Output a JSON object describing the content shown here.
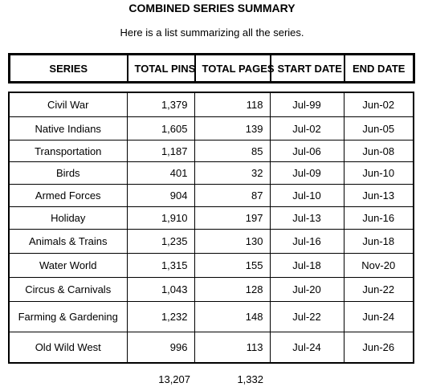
{
  "header": {
    "title": "COMBINED SERIES SUMMARY",
    "subtitle": "Here is a list summarizing all the series."
  },
  "table": {
    "columns": [
      "SERIES",
      "TOTAL PINS",
      "TOTAL PAGES",
      "START DATE",
      "END DATE"
    ],
    "rows": [
      [
        "Civil War",
        "1,379",
        "118",
        "Jul-99",
        "Jun-02"
      ],
      [
        "Native Indians",
        "1,605",
        "139",
        "Jul-02",
        "Jun-05"
      ],
      [
        "Transportation",
        "1,187",
        "85",
        "Jul-06",
        "Jun-08"
      ],
      [
        "Birds",
        "401",
        "32",
        "Jul-09",
        "Jun-10"
      ],
      [
        "Armed Forces",
        "904",
        "87",
        "Jul-10",
        "Jun-13"
      ],
      [
        "Holiday",
        "1,910",
        "197",
        "Jul-13",
        "Jun-16"
      ],
      [
        "Animals & Trains",
        "1,235",
        "130",
        "Jul-16",
        "Jun-18"
      ],
      [
        "Water World",
        "1,315",
        "155",
        "Jul-18",
        "Nov-20"
      ],
      [
        "Circus & Carnivals",
        "1,043",
        "128",
        "Jul-20",
        "Jun-22"
      ],
      [
        "Farming & Gardening",
        "1,232",
        "148",
        "Jul-22",
        "Jun-24"
      ],
      [
        "Old Wild West",
        "996",
        "113",
        "Jul-24",
        "Jun-26"
      ]
    ],
    "totals": {
      "pins": "13,207",
      "pages": "1,332"
    }
  }
}
